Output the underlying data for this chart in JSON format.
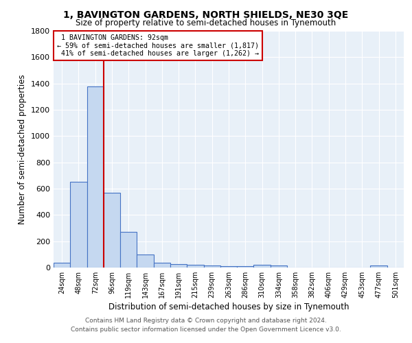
{
  "title1": "1, BAVINGTON GARDENS, NORTH SHIELDS, NE30 3QE",
  "title2": "Size of property relative to semi-detached houses in Tynemouth",
  "xlabel": "Distribution of semi-detached houses by size in Tynemouth",
  "ylabel": "Number of semi-detached properties",
  "categories": [
    "24sqm",
    "48sqm",
    "72sqm",
    "96sqm",
    "119sqm",
    "143sqm",
    "167sqm",
    "191sqm",
    "215sqm",
    "239sqm",
    "263sqm",
    "286sqm",
    "310sqm",
    "334sqm",
    "358sqm",
    "382sqm",
    "406sqm",
    "429sqm",
    "453sqm",
    "477sqm",
    "501sqm"
  ],
  "values": [
    35,
    650,
    1375,
    570,
    270,
    100,
    35,
    25,
    20,
    15,
    10,
    8,
    20,
    18,
    0,
    0,
    0,
    0,
    0,
    15,
    0
  ],
  "bar_color": "#c5d8f0",
  "bar_edge_color": "#4472c4",
  "marker_label": "1 BAVINGTON GARDENS: 92sqm",
  "pct_smaller": 59,
  "pct_larger": 41,
  "n_smaller": "1,817",
  "n_larger": "1,262",
  "annotation_box_color": "#ffffff",
  "annotation_box_edge": "#cc0000",
  "red_line_color": "#cc0000",
  "red_line_x": 2.5,
  "ylim": [
    0,
    1800
  ],
  "yticks": [
    0,
    200,
    400,
    600,
    800,
    1000,
    1200,
    1400,
    1600,
    1800
  ],
  "footer1": "Contains HM Land Registry data © Crown copyright and database right 2024.",
  "footer2": "Contains public sector information licensed under the Open Government Licence v3.0.",
  "bg_color": "#e8f0f8"
}
